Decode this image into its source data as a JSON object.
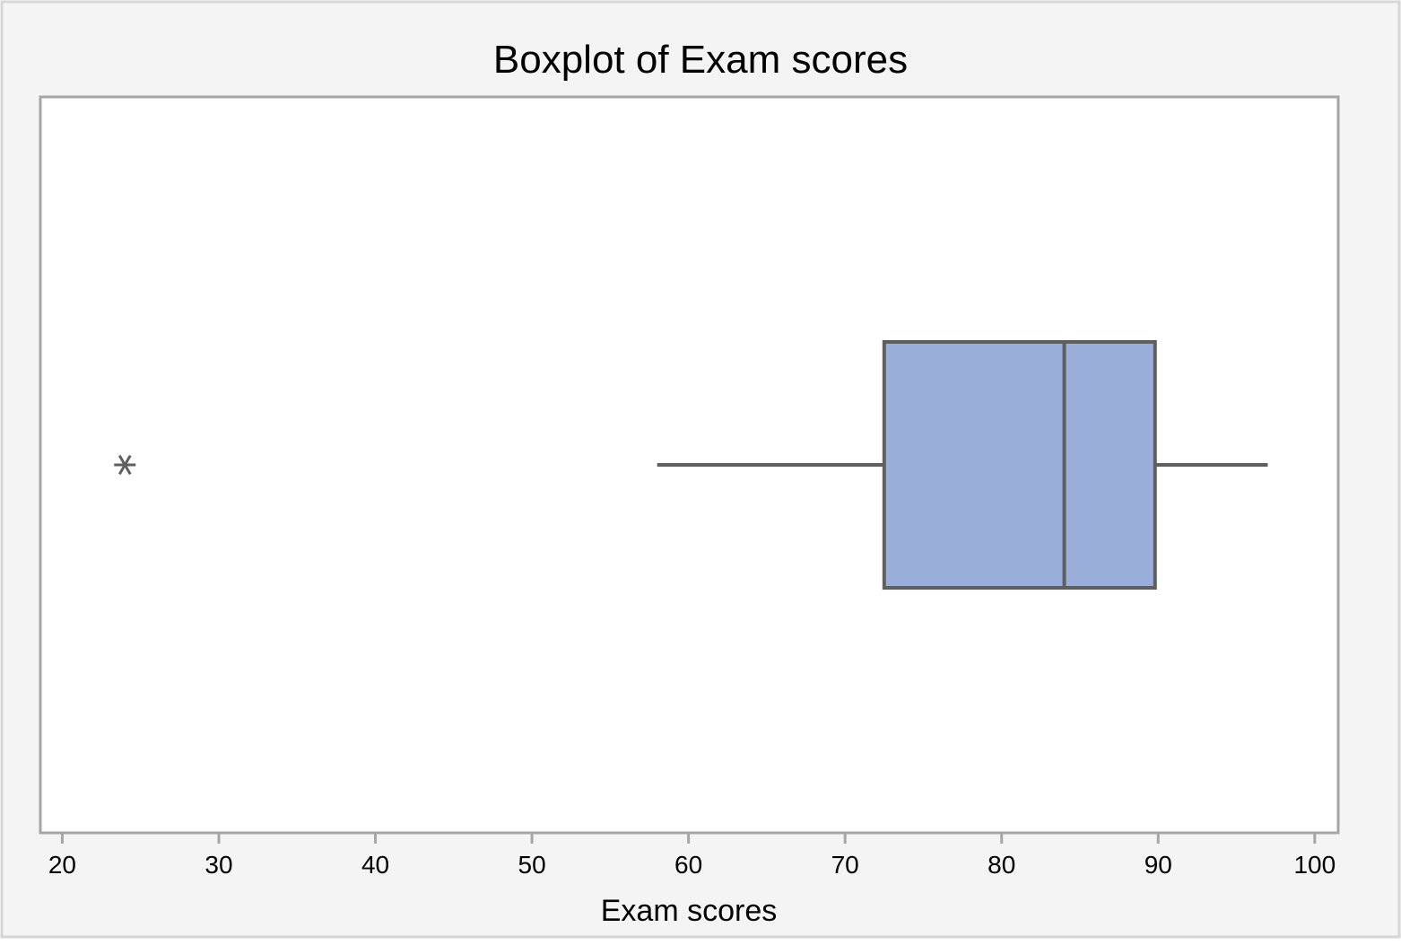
{
  "chart_data": {
    "type": "boxplot",
    "title": "Boxplot of Exam scores",
    "xlabel": "Exam scores",
    "ylabel": "",
    "xlim": [
      18.6,
      101.5
    ],
    "ticks": [
      {
        "value": 20,
        "label": "20"
      },
      {
        "value": 30,
        "label": "30"
      },
      {
        "value": 40,
        "label": "40"
      },
      {
        "value": 50,
        "label": "50"
      },
      {
        "value": 60,
        "label": "60"
      },
      {
        "value": 70,
        "label": "70"
      },
      {
        "value": 80,
        "label": "80"
      },
      {
        "value": 90,
        "label": "90"
      },
      {
        "value": 100,
        "label": "100"
      }
    ],
    "orientation": "horizontal",
    "grid": false,
    "legend": "none",
    "series": [
      {
        "whisker_low": 58,
        "q1": 72.5,
        "median": 84,
        "q3": 89.8,
        "whisker_high": 97,
        "outliers": [
          24
        ]
      }
    ],
    "colors": {
      "box_fill": "#99AFD9",
      "box_stroke": "#5f5f5f",
      "outlier": "#5f5f5f",
      "frame_background": "#f4f4f4",
      "frame_border": "#d6d6d6",
      "plot_border": "#a6a6a6"
    },
    "outlier_symbol": "asterisk"
  }
}
